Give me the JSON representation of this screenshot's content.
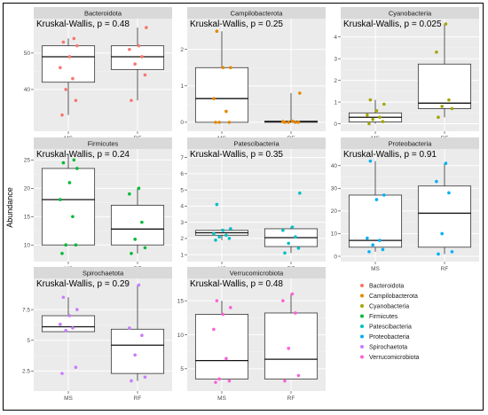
{
  "chart_data": {
    "type": "boxplot",
    "ylabel": "Abundance",
    "categories": [
      "MS",
      "RF"
    ],
    "legend": [
      {
        "name": "Bacteroidota",
        "color": "#f8766d"
      },
      {
        "name": "Campilobacterota",
        "color": "#e58700"
      },
      {
        "name": "Cyanobacteria",
        "color": "#a3a500"
      },
      {
        "name": "Firmicutes",
        "color": "#00ba38"
      },
      {
        "name": "Patescibacteria",
        "color": "#00bfc4"
      },
      {
        "name": "Proteobacteria",
        "color": "#00b0f6"
      },
      {
        "name": "Spirochaetota",
        "color": "#c77cff"
      },
      {
        "name": "Verrucomicrobiota",
        "color": "#fb61d7"
      }
    ],
    "panels": [
      {
        "title": "Bacteroidota",
        "stat": "Kruskal-Wallis, p = 0.48",
        "color": "#f8766d",
        "ylim": [
          30,
          58
        ],
        "yticks": [
          40,
          50
        ],
        "groups": [
          {
            "name": "MS",
            "box": [
              33,
              42,
              49,
              52,
              54
            ],
            "points": [
              33,
              37,
              40,
              43,
              46,
              49,
              52,
              53,
              54
            ]
          },
          {
            "name": "RF",
            "box": [
              37,
              45.5,
              49,
              52,
              57
            ],
            "points": [
              37,
              44,
              47,
              49,
              51,
              52,
              57
            ]
          }
        ]
      },
      {
        "title": "Campilobacterota",
        "stat": "Kruskal-Wallis, p = 0.25",
        "color": "#e58700",
        "ylim": [
          -0.1,
          2.7
        ],
        "yticks": [
          0,
          1,
          2
        ],
        "groups": [
          {
            "name": "MS",
            "box": [
              0,
              0,
              0.65,
              1.5,
              2.5
            ],
            "points": [
              0,
              0,
              0,
              0.3,
              0.65,
              1.5,
              1.5,
              2.5
            ]
          },
          {
            "name": "RF",
            "box": [
              0,
              0,
              0.02,
              0.03,
              0.8
            ],
            "points": [
              0,
              0,
              0,
              0,
              0.02,
              0.03,
              0.8
            ]
          }
        ]
      },
      {
        "title": "Cyanobacteria",
        "stat": "Kruskal-Wallis, p = 0.025",
        "color": "#a3a500",
        "ylim": [
          -0.1,
          4.6
        ],
        "yticks": [
          0,
          1,
          2,
          3,
          4
        ],
        "groups": [
          {
            "name": "MS",
            "box": [
              0,
              0.08,
              0.3,
              0.5,
              1.1
            ],
            "points": [
              0,
              0.1,
              0.2,
              0.3,
              0.4,
              0.6,
              0.9,
              1.1
            ]
          },
          {
            "name": "RF",
            "box": [
              0.3,
              0.7,
              0.95,
              2.75,
              4.6
            ],
            "points": [
              0.3,
              0.7,
              0.8,
              1.1,
              3.3,
              4.6
            ]
          }
        ]
      },
      {
        "title": "Firmicutes",
        "stat": "Kruskal-Wallis, p = 0.24",
        "color": "#00ba38",
        "ylim": [
          8,
          26
        ],
        "yticks": [
          10,
          15,
          20,
          25
        ],
        "groups": [
          {
            "name": "MS",
            "box": [
              10,
              10,
              18,
              23.5,
              26
            ],
            "points": [
              8.5,
              10,
              10,
              15,
              18,
              21,
              23.5,
              24.5,
              25
            ]
          },
          {
            "name": "RF",
            "box": [
              8.5,
              10,
              12.8,
              17,
              20
            ],
            "points": [
              8.5,
              9.5,
              11,
              14,
              19,
              20
            ]
          }
        ]
      },
      {
        "title": "Patescibacteria",
        "stat": "Kruskal-Wallis, p = 0.35",
        "color": "#00bfc4",
        "ylim": [
          0.9,
          7.2
        ],
        "yticks": [
          1,
          2,
          3,
          4,
          5,
          6,
          7
        ],
        "groups": [
          {
            "name": "MS",
            "box": [
              1.9,
              2.2,
              2.35,
              2.5,
              2.6
            ],
            "points": [
              1.9,
              2,
              2.1,
              2.2,
              2.3,
              2.5,
              2.6,
              4.1
            ]
          },
          {
            "name": "RF",
            "box": [
              1.1,
              1.5,
              2.05,
              2.6,
              2.7
            ],
            "points": [
              1.1,
              1.4,
              1.7,
              2.1,
              2.5,
              2.7,
              4.8
            ]
          }
        ]
      },
      {
        "title": "Proteobacteria",
        "stat": "Kruskal-Wallis, p = 0.91",
        "color": "#00b0f6",
        "ylim": [
          0,
          45
        ],
        "yticks": [
          0,
          10,
          20,
          30,
          40
        ],
        "groups": [
          {
            "name": "MS",
            "box": [
              2,
              4,
              7,
              27,
              42
            ],
            "points": [
              2,
              3,
              5,
              7,
              8,
              25,
              27,
              42
            ]
          },
          {
            "name": "RF",
            "box": [
              1,
              4,
              19,
              31,
              41
            ],
            "points": [
              1,
              2,
              10,
              28,
              33,
              41
            ]
          }
        ]
      },
      {
        "title": "Spirochaetota",
        "stat": "Kruskal-Wallis, p = 0.29",
        "color": "#c77cff",
        "ylim": [
          1.3,
          9.6
        ],
        "yticks": [
          2.5,
          5.0,
          7.5
        ],
        "groups": [
          {
            "name": "MS",
            "box": [
              5.7,
              5.7,
              6.1,
              7.0,
              8.5
            ],
            "points": [
              2.3,
              2.8,
              5.8,
              6.0,
              6.3,
              7.0,
              7.5,
              8.5
            ]
          },
          {
            "name": "RF",
            "box": [
              1.7,
              2.3,
              4.6,
              5.9,
              9.5
            ],
            "points": [
              1.7,
              2.0,
              3.8,
              5.4,
              6.0,
              9.5
            ]
          }
        ]
      },
      {
        "title": "Verrucomicrobiota",
        "stat": "Kruskal-Wallis, p = 0.48",
        "color": "#fb61d7",
        "ylim": [
          2.5,
          17.5
        ],
        "yticks": [
          5,
          10,
          15
        ],
        "groups": [
          {
            "name": "MS",
            "box": [
              3.5,
              3.5,
              6.2,
              13,
              15
            ],
            "points": [
              3,
              3.2,
              3.5,
              6.5,
              10.8,
              13,
              14,
              15
            ]
          },
          {
            "name": "RF",
            "box": [
              3.5,
              3.5,
              6.4,
              13.2,
              16
            ],
            "points": [
              3.2,
              4,
              8,
              13.2,
              15,
              16
            ]
          }
        ]
      }
    ]
  }
}
